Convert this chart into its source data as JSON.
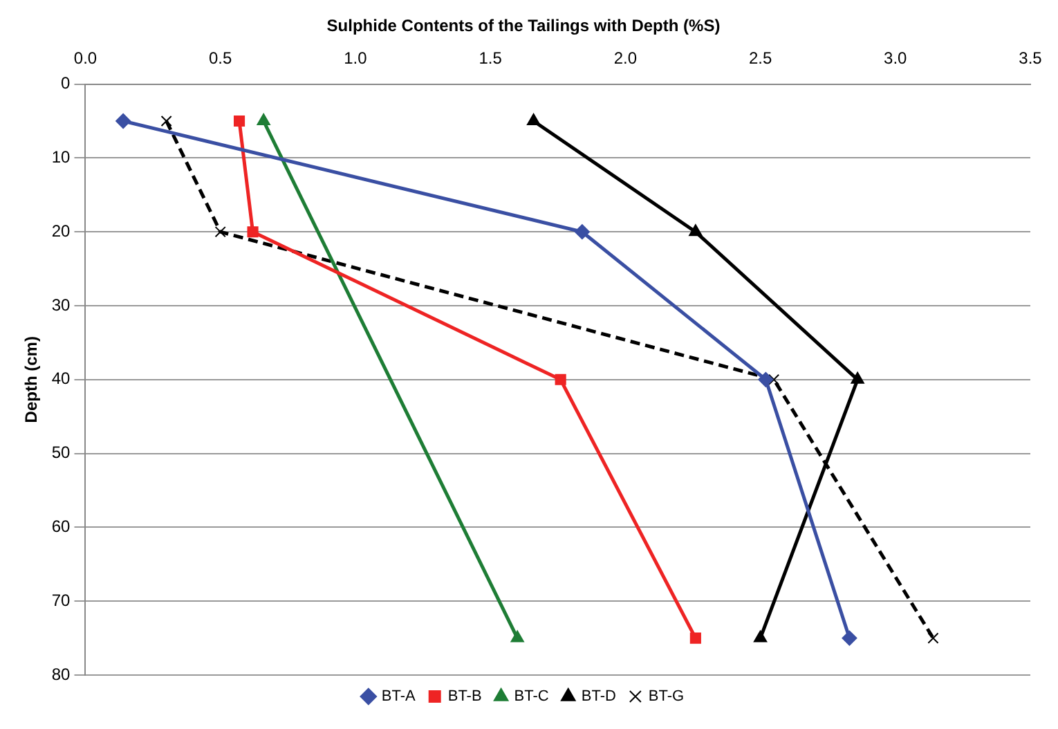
{
  "chart_data": {
    "type": "line",
    "title": "Sulphide Contents of the Tailings with Depth (%S)",
    "ylabel": "Depth (cm)",
    "xlim": [
      0,
      3.5
    ],
    "xticks": [
      {
        "value": 0,
        "label": "0.0"
      },
      {
        "value": 0.5,
        "label": "0.5"
      },
      {
        "value": 1,
        "label": "1.0"
      },
      {
        "value": 1.5,
        "label": "1.5"
      },
      {
        "value": 2,
        "label": "2.0"
      },
      {
        "value": 2.5,
        "label": "2.5"
      },
      {
        "value": 3,
        "label": "3.0"
      },
      {
        "value": 3.5,
        "label": "3.5"
      }
    ],
    "ylim": [
      80,
      0
    ],
    "yticks": [
      0,
      10,
      20,
      30,
      40,
      50,
      60,
      70,
      80
    ],
    "grid": "y",
    "legend": "bottom",
    "series": [
      {
        "name": "BT-A",
        "color": "#3a4fa3",
        "marker": "diamond",
        "line_style": "solid",
        "x": [
          0.14,
          1.84,
          2.52,
          2.83
        ],
        "values": [
          5,
          20,
          40,
          75
        ]
      },
      {
        "name": "BT-B",
        "color": "#ee2424",
        "marker": "square",
        "line_style": "solid",
        "x": [
          0.57,
          0.62,
          1.76,
          2.26
        ],
        "values": [
          5,
          20,
          40,
          75
        ]
      },
      {
        "name": "BT-C",
        "color": "#1e7d35",
        "marker": "triangle",
        "line_style": "solid",
        "x": [
          0.66,
          1.6
        ],
        "values": [
          5,
          75
        ]
      },
      {
        "name": "BT-D",
        "color": "#000000",
        "marker": "triangle",
        "line_style": "solid",
        "x": [
          1.66,
          2.26,
          2.86,
          2.5
        ],
        "values": [
          5,
          20,
          40,
          75
        ]
      },
      {
        "name": "BT-G",
        "color": "#000000",
        "marker": "cross",
        "line_style": "dashed",
        "x": [
          0.3,
          0.5,
          2.55,
          3.14
        ],
        "values": [
          5,
          20,
          40,
          75
        ]
      }
    ]
  }
}
